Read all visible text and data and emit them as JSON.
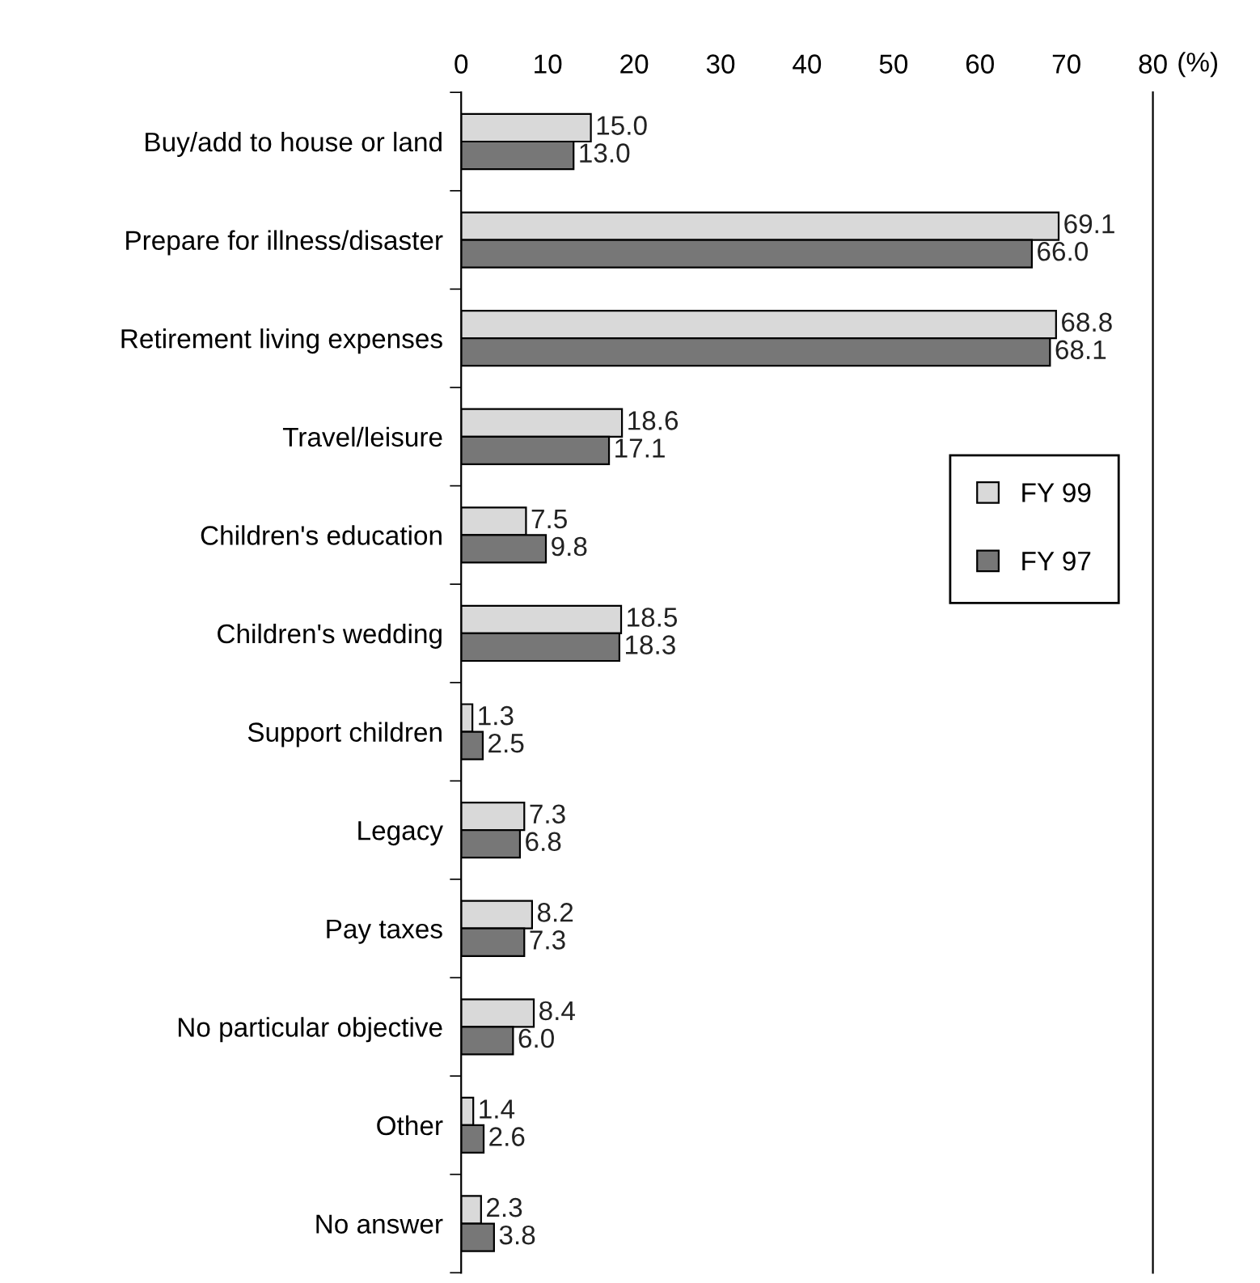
{
  "chart_data": {
    "type": "bar",
    "orientation": "horizontal",
    "xlabel": "(%)",
    "categories": [
      "Buy/add to house or land",
      "Prepare for illness/disaster",
      "Retirement living expenses",
      "Travel/leisure",
      "Children's education",
      "Children's wedding",
      "Support children",
      "Legacy",
      "Pay taxes",
      "No particular objective",
      "Other",
      "No answer"
    ],
    "series": [
      {
        "name": "FY 99",
        "color": "#d9d9d9",
        "values": [
          15.0,
          69.1,
          68.8,
          18.6,
          7.5,
          18.5,
          1.3,
          7.3,
          8.2,
          8.4,
          1.4,
          2.3
        ],
        "value_labels": [
          "15.0",
          "69.1",
          "68.8",
          "18.6",
          "7.5",
          "18.5",
          "1.3",
          "7.3",
          "8.2",
          "8.4",
          "1.4",
          "2.3"
        ]
      },
      {
        "name": "FY 97",
        "color": "#777777",
        "values": [
          13.0,
          66.0,
          68.1,
          17.1,
          9.8,
          18.3,
          2.5,
          6.8,
          7.3,
          6.0,
          2.6,
          3.8
        ],
        "value_labels": [
          "13.0",
          "66.0",
          "68.1",
          "17.1",
          "9.8",
          "18.3",
          "2.5",
          "6.8",
          "7.3",
          "6.0",
          "2.6",
          "3.8"
        ]
      }
    ],
    "xlim": [
      0,
      80
    ],
    "xticks": [
      0,
      10,
      20,
      30,
      40,
      50,
      60,
      70,
      80
    ],
    "legend": "right",
    "grid": false
  }
}
